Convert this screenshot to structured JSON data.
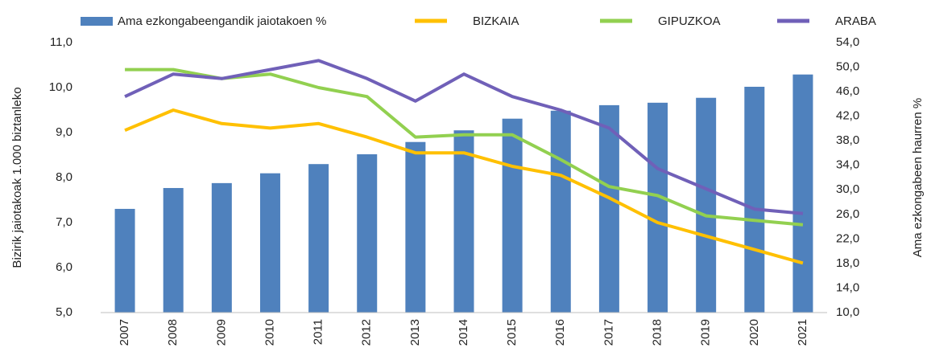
{
  "chart_data": {
    "type": "combo",
    "categories": [
      "2007",
      "2008",
      "2009",
      "2010",
      "2011",
      "2012",
      "2013",
      "2014",
      "2015",
      "2016",
      "2017",
      "2018",
      "2019",
      "2020",
      "2021"
    ],
    "series": [
      {
        "name": "Ama ezkongabeengandik jaiotakoen %",
        "type": "bar",
        "axis": "y2",
        "color": "#4f81bd",
        "values": [
          26.9,
          30.3,
          31.1,
          32.7,
          34.2,
          35.8,
          37.8,
          39.7,
          41.6,
          42.9,
          43.8,
          44.2,
          45.0,
          46.8,
          48.8
        ]
      },
      {
        "name": "BIZKAIA",
        "type": "line",
        "color": "#ffc000",
        "values": [
          9.05,
          9.5,
          9.2,
          9.1,
          9.2,
          8.9,
          8.55,
          8.55,
          8.25,
          8.05,
          7.55,
          7.0,
          6.7,
          6.4,
          6.1
        ]
      },
      {
        "name": "GIPUZKOA",
        "type": "line",
        "color": "#92d050",
        "values": [
          10.4,
          10.4,
          10.2,
          10.3,
          10.0,
          9.8,
          8.9,
          8.95,
          8.95,
          8.4,
          7.8,
          7.6,
          7.15,
          7.05,
          6.95
        ]
      },
      {
        "name": "ARABA",
        "type": "line",
        "color": "#7060b8",
        "values": [
          9.8,
          10.3,
          10.2,
          10.4,
          10.6,
          10.2,
          9.7,
          10.3,
          9.8,
          9.5,
          9.1,
          8.2,
          7.75,
          7.3,
          7.2
        ]
      }
    ],
    "y_label": "Bizirik jaiotakoak 1.000 biztanleko",
    "y2_label": "Ama ezkongabeen haurren %",
    "ylim": [
      5,
      11
    ],
    "yticks": [
      {
        "value": 5,
        "label": "5,0"
      },
      {
        "value": 6,
        "label": "6,0"
      },
      {
        "value": 7,
        "label": "7,0"
      },
      {
        "value": 8,
        "label": "8,0"
      },
      {
        "value": 9,
        "label": "9,0"
      },
      {
        "value": 10,
        "label": "10,0"
      },
      {
        "value": 11,
        "label": "11,0"
      }
    ],
    "y2lim": [
      10,
      54
    ],
    "y2ticks": [
      {
        "value": 10,
        "label": "10,0"
      },
      {
        "value": 14,
        "label": "14,0"
      },
      {
        "value": 18,
        "label": "18,0"
      },
      {
        "value": 22,
        "label": "22,0"
      },
      {
        "value": 26,
        "label": "26,0"
      },
      {
        "value": 30,
        "label": "30,0"
      },
      {
        "value": 34,
        "label": "34,0"
      },
      {
        "value": 38,
        "label": "38,0"
      },
      {
        "value": 42,
        "label": "42,0"
      },
      {
        "value": 46,
        "label": "46,0"
      },
      {
        "value": 50,
        "label": "50,0"
      },
      {
        "value": 54,
        "label": "54,0"
      }
    ],
    "legend": "top"
  }
}
